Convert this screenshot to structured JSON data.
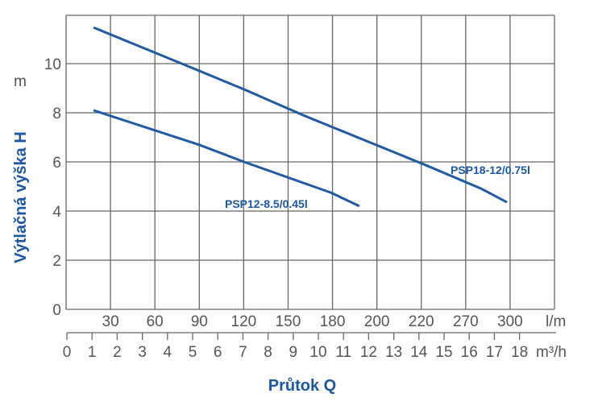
{
  "chart_data": {
    "type": "line",
    "ylabel": "Výtlačná výška H",
    "yunit": "m",
    "xlabel": "Průtok Q",
    "ylim": [
      0,
      12
    ],
    "yticks": [
      0,
      2,
      4,
      6,
      8,
      10
    ],
    "grid": true,
    "x_axis_lpm": {
      "unit": "l/m",
      "ticks": [
        "30",
        "60",
        "90",
        "120",
        "150",
        "180",
        "200",
        "220",
        "270",
        "300"
      ]
    },
    "x_axis_m3h": {
      "unit": "m³/h",
      "ticks": [
        "0",
        "1",
        "2",
        "3",
        "4",
        "5",
        "6",
        "7",
        "8",
        "9",
        "10",
        "11",
        "12",
        "13",
        "14",
        "15",
        "16",
        "17",
        "18"
      ],
      "xlim": [
        0,
        18
      ]
    },
    "series": [
      {
        "name": "PSP18-12/0.75l",
        "x_m3h": [
          1.06,
          5.28,
          7.05,
          9.4,
          14.2,
          16.5,
          17.5
        ],
        "y": [
          11.47,
          9.7,
          8.95,
          7.9,
          5.9,
          4.9,
          4.36
        ]
      },
      {
        "name": "PSP12-8.5/0.45l",
        "x_m3h": [
          1.06,
          5.28,
          7.05,
          9.5,
          10.5,
          11.63
        ],
        "y": [
          8.1,
          6.69,
          6.0,
          5.11,
          4.75,
          4.2
        ]
      }
    ],
    "color": "#1f5aa6"
  }
}
